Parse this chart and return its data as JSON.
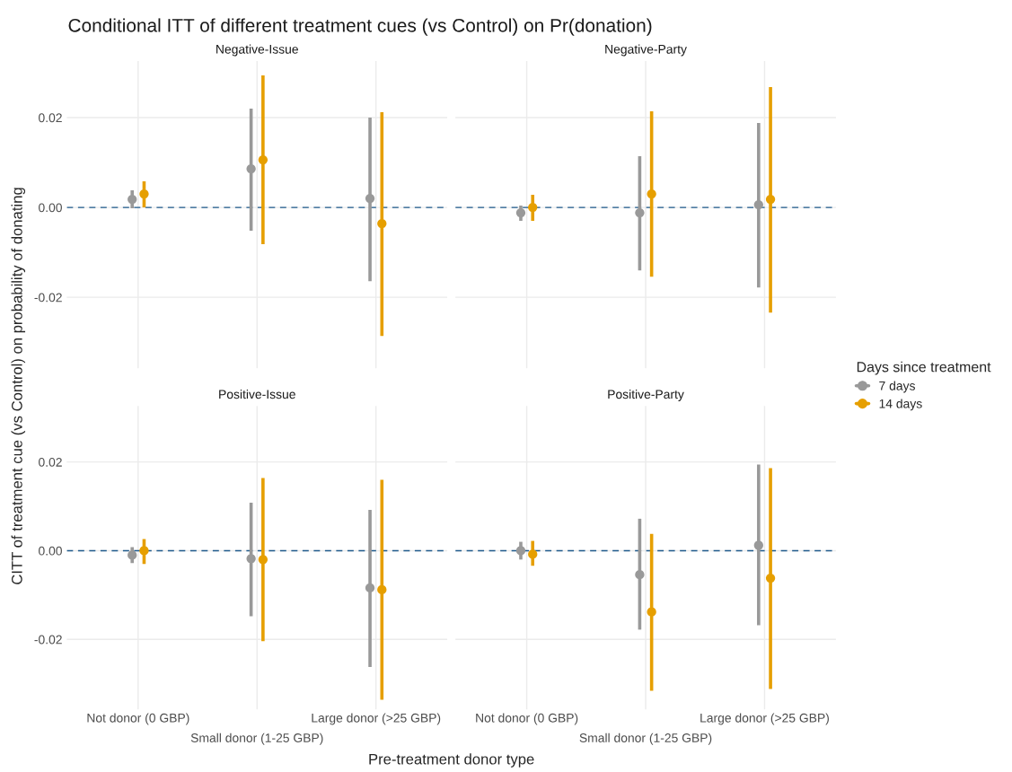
{
  "chart_data": [
    {
      "type": "scatter",
      "title": "Negative-Issue",
      "annotations": [
        "Conditional ITT of different treatment cues (vs Control) on Pr(donation)"
      ],
      "xlabel": "Pre-treatment donor type",
      "ylabel": "CITT of treatment cue (vs Control) on probability of donating",
      "legend_title": "Days since treatment",
      "legend": "right",
      "categories": [
        "Not donor (0 GBP)",
        "Small donor (1-25 GBP)",
        "Large donor (>25 GBP)"
      ],
      "ylim": [
        -0.0358,
        0.0326
      ],
      "yticks": [
        {
          "value": -0.02,
          "label": "-0.02"
        },
        {
          "value": 0,
          "label": "0.00"
        },
        {
          "value": 0.02,
          "label": "0.02"
        }
      ],
      "grid": true,
      "marker": "circle",
      "tick_labels": "y",
      "ref_lines": [
        {
          "axis": "y",
          "value": 0,
          "color": "#1f5a8c",
          "line_style": "dashed"
        }
      ],
      "series": [
        {
          "name": "7 days",
          "color": "#999999",
          "values": [
            0.0018,
            0.0086,
            0.002
          ],
          "errors": [
            [
              -0.0002,
              0.0038
            ],
            [
              -0.0052,
              0.022
            ],
            [
              -0.0164,
              0.02
            ]
          ]
        },
        {
          "name": "14 days",
          "color": "#e69f00",
          "values": [
            0.003,
            0.0106,
            -0.0036
          ],
          "errors": [
            [
              0.0,
              0.0058
            ],
            [
              -0.0082,
              0.0294
            ],
            [
              -0.0286,
              0.0212
            ]
          ]
        }
      ]
    },
    {
      "type": "scatter",
      "title": "Negative-Party",
      "categories": [
        "Not donor (0 GBP)",
        "Small donor (1-25 GBP)",
        "Large donor (>25 GBP)"
      ],
      "ylim": [
        -0.0358,
        0.0326
      ],
      "yticks": [
        {
          "value": -0.02,
          "label": "-0.02"
        },
        {
          "value": 0,
          "label": "0.00"
        },
        {
          "value": 0.02,
          "label": "0.02"
        }
      ],
      "grid": true,
      "marker": "circle",
      "tick_labels": false,
      "ref_lines": [
        {
          "axis": "y",
          "value": 0,
          "color": "#1f5a8c",
          "line_style": "dashed"
        }
      ],
      "series": [
        {
          "name": "7 days",
          "color": "#999999",
          "values": [
            -0.0012,
            -0.0012,
            0.0006
          ],
          "errors": [
            [
              -0.003,
              0.0004
            ],
            [
              -0.014,
              0.0114
            ],
            [
              -0.0178,
              0.0188
            ]
          ]
        },
        {
          "name": "14 days",
          "color": "#e69f00",
          "values": [
            0.0,
            0.003,
            0.0018
          ],
          "errors": [
            [
              -0.003,
              0.0028
            ],
            [
              -0.0154,
              0.0214
            ],
            [
              -0.0234,
              0.0268
            ]
          ]
        }
      ]
    },
    {
      "type": "scatter",
      "title": "Positive-Issue",
      "categories": [
        "Not donor (0 GBP)",
        "Small donor (1-25 GBP)",
        "Large donor (>25 GBP)"
      ],
      "ylim": [
        -0.0358,
        0.0326
      ],
      "yticks": [
        {
          "value": -0.02,
          "label": "-0.02"
        },
        {
          "value": 0,
          "label": "0.00"
        },
        {
          "value": 0.02,
          "label": "0.02"
        }
      ],
      "grid": true,
      "marker": "circle",
      "ref_lines": [
        {
          "axis": "y",
          "value": 0,
          "color": "#1f5a8c",
          "line_style": "dashed"
        }
      ],
      "series": [
        {
          "name": "7 days",
          "color": "#999999",
          "values": [
            -0.001,
            -0.0018,
            -0.0084
          ],
          "errors": [
            [
              -0.0028,
              0.0008
            ],
            [
              -0.0148,
              0.0108
            ],
            [
              -0.0262,
              0.0092
            ]
          ]
        },
        {
          "name": "14 days",
          "color": "#e69f00",
          "values": [
            0.0,
            -0.002,
            -0.0088
          ],
          "errors": [
            [
              -0.003,
              0.0026
            ],
            [
              -0.0204,
              0.0164
            ],
            [
              -0.0336,
              0.016
            ]
          ]
        }
      ]
    },
    {
      "type": "scatter",
      "title": "Positive-Party",
      "categories": [
        "Not donor (0 GBP)",
        "Small donor (1-25 GBP)",
        "Large donor (>25 GBP)"
      ],
      "ylim": [
        -0.0358,
        0.0326
      ],
      "yticks": [
        {
          "value": -0.02,
          "label": "-0.02"
        },
        {
          "value": 0,
          "label": "0.00"
        },
        {
          "value": 0.02,
          "label": "0.02"
        }
      ],
      "grid": true,
      "marker": "circle",
      "tick_labels": "x",
      "ref_lines": [
        {
          "axis": "y",
          "value": 0,
          "color": "#1f5a8c",
          "line_style": "dashed"
        }
      ],
      "series": [
        {
          "name": "7 days",
          "color": "#999999",
          "values": [
            0.0,
            -0.0054,
            0.0012
          ],
          "errors": [
            [
              -0.002,
              0.002
            ],
            [
              -0.0178,
              0.0072
            ],
            [
              -0.0168,
              0.0194
            ]
          ]
        },
        {
          "name": "14 days",
          "color": "#e69f00",
          "values": [
            -0.0008,
            -0.0138,
            -0.0062
          ],
          "errors": [
            [
              -0.0034,
              0.0022
            ],
            [
              -0.0316,
              0.0038
            ],
            [
              -0.0312,
              0.0186
            ]
          ]
        }
      ]
    }
  ]
}
